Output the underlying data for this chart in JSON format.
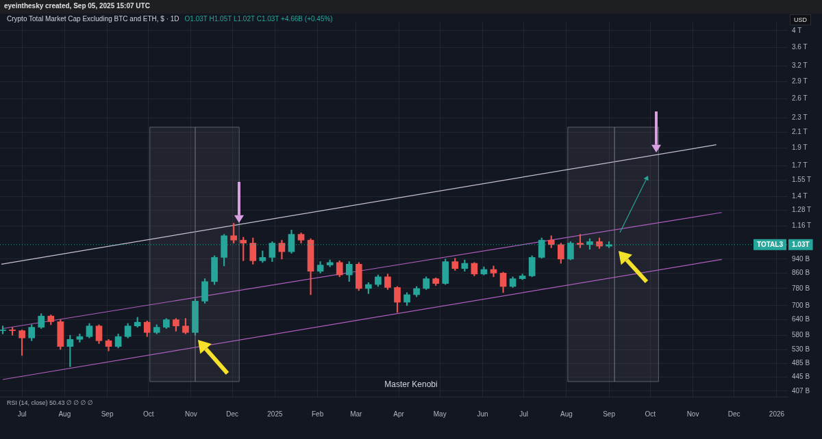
{
  "chart_data": {
    "type": "candlestick",
    "title": "Crypto Total Market Cap Excluding BTC and ETH, $ · 1D",
    "subtitle": "O1.03T H1.05T L1.02T C1.03T +4.66B (+0.45%)",
    "ylabel": "USD",
    "annotations": [
      "eyeinthesky created, Sep 05, 2025 15:07 UTC",
      "1.03T",
      "Master Kenobi",
      "RSI (14, close) 50.43 ∅ ∅ ∅ ∅"
    ],
    "x": [
      "2024-06-17",
      "2024-06-24",
      "2024-07-01",
      "2024-07-08",
      "2024-07-15",
      "2024-07-22",
      "2024-07-29",
      "2024-08-05",
      "2024-08-12",
      "2024-08-19",
      "2024-08-26",
      "2024-09-02",
      "2024-09-09",
      "2024-09-16",
      "2024-09-23",
      "2024-09-30",
      "2024-10-07",
      "2024-10-14",
      "2024-10-21",
      "2024-10-28",
      "2024-11-04",
      "2024-11-11",
      "2024-11-18",
      "2024-11-25",
      "2024-12-02",
      "2024-12-09",
      "2024-12-16",
      "2024-12-23",
      "2024-12-30",
      "2025-01-06",
      "2025-01-13",
      "2025-01-20",
      "2025-01-27",
      "2025-02-03",
      "2025-02-10",
      "2025-02-17",
      "2025-02-24",
      "2025-03-03",
      "2025-03-10",
      "2025-03-17",
      "2025-03-24",
      "2025-03-31",
      "2025-04-07",
      "2025-04-14",
      "2025-04-21",
      "2025-04-28",
      "2025-05-05",
      "2025-05-12",
      "2025-05-19",
      "2025-05-26",
      "2025-06-02",
      "2025-06-09",
      "2025-06-16",
      "2025-06-23",
      "2025-06-30",
      "2025-07-07",
      "2025-07-14",
      "2025-07-21",
      "2025-07-28",
      "2025-08-04",
      "2025-08-11",
      "2025-08-18",
      "2025-08-25",
      "2025-09-01"
    ],
    "ohlc": [
      [
        597000000000.0,
        615000000000.0,
        585000000000.0,
        600000000000.0
      ],
      [
        600000000000.0,
        610000000000.0,
        580000000000.0,
        597000000000.0
      ],
      [
        597000000000.0,
        600000000000.0,
        510000000000.0,
        570000000000.0
      ],
      [
        570000000000.0,
        620000000000.0,
        560000000000.0,
        610000000000.0
      ],
      [
        610000000000.0,
        665000000000.0,
        605000000000.0,
        655000000000.0
      ],
      [
        655000000000.0,
        660000000000.0,
        620000000000.0,
        632000000000.0
      ],
      [
        632000000000.0,
        640000000000.0,
        530000000000.0,
        540000000000.0
      ],
      [
        540000000000.0,
        580000000000.0,
        475000000000.0,
        565000000000.0
      ],
      [
        565000000000.0,
        585000000000.0,
        555000000000.0,
        575000000000.0
      ],
      [
        575000000000.0,
        625000000000.0,
        570000000000.0,
        615000000000.0
      ],
      [
        615000000000.0,
        620000000000.0,
        550000000000.0,
        560000000000.0
      ],
      [
        560000000000.0,
        565000000000.0,
        525000000000.0,
        540000000000.0
      ],
      [
        540000000000.0,
        585000000000.0,
        535000000000.0,
        575000000000.0
      ],
      [
        575000000000.0,
        625000000000.0,
        570000000000.0,
        615000000000.0
      ],
      [
        615000000000.0,
        650000000000.0,
        610000000000.0,
        630000000000.0
      ],
      [
        630000000000.0,
        635000000000.0,
        575000000000.0,
        590000000000.0
      ],
      [
        590000000000.0,
        620000000000.0,
        585000000000.0,
        610000000000.0
      ],
      [
        610000000000.0,
        645000000000.0,
        605000000000.0,
        640000000000.0
      ],
      [
        640000000000.0,
        645000000000.0,
        595000000000.0,
        615000000000.0
      ],
      [
        615000000000.0,
        645000000000.0,
        585000000000.0,
        590000000000.0
      ],
      [
        590000000000.0,
        730000000000.0,
        580000000000.0,
        720000000000.0
      ],
      [
        720000000000.0,
        830000000000.0,
        710000000000.0,
        815000000000.0
      ],
      [
        815000000000.0,
        960000000000.0,
        800000000000.0,
        950000000000.0
      ],
      [
        950000000000.0,
        1100000000000.0,
        900000000000.0,
        1090000000000.0
      ],
      [
        1090000000000.0,
        1180000000000.0,
        1040000000000.0,
        1060000000000.0
      ],
      [
        1060000000000.0,
        1080000000000.0,
        930000000000.0,
        1040000000000.0
      ],
      [
        1040000000000.0,
        1075000000000.0,
        910000000000.0,
        930000000000.0
      ],
      [
        930000000000.0,
        990000000000.0,
        920000000000.0,
        950000000000.0
      ],
      [
        950000000000.0,
        1050000000000.0,
        925000000000.0,
        1040000000000.0
      ],
      [
        1040000000000.0,
        1060000000000.0,
        940000000000.0,
        985000000000.0
      ],
      [
        985000000000.0,
        1130000000000.0,
        975000000000.0,
        1100000000000.0
      ],
      [
        1100000000000.0,
        1110000000000.0,
        1040000000000.0,
        1060000000000.0
      ],
      [
        1060000000000.0,
        1070000000000.0,
        750000000000.0,
        870000000000.0
      ],
      [
        870000000000.0,
        925000000000.0,
        860000000000.0,
        905000000000.0
      ],
      [
        905000000000.0,
        935000000000.0,
        895000000000.0,
        920000000000.0
      ],
      [
        920000000000.0,
        930000000000.0,
        840000000000.0,
        850000000000.0
      ],
      [
        850000000000.0,
        925000000000.0,
        815000000000.0,
        910000000000.0
      ],
      [
        910000000000.0,
        920000000000.0,
        770000000000.0,
        780000000000.0
      ],
      [
        780000000000.0,
        810000000000.0,
        755000000000.0,
        800000000000.0
      ],
      [
        800000000000.0,
        850000000000.0,
        790000000000.0,
        840000000000.0
      ],
      [
        840000000000.0,
        855000000000.0,
        775000000000.0,
        785000000000.0
      ],
      [
        785000000000.0,
        790000000000.0,
        670000000000.0,
        715000000000.0
      ],
      [
        715000000000.0,
        760000000000.0,
        700000000000.0,
        750000000000.0
      ],
      [
        750000000000.0,
        790000000000.0,
        740000000000.0,
        780000000000.0
      ],
      [
        780000000000.0,
        840000000000.0,
        775000000000.0,
        830000000000.0
      ],
      [
        830000000000.0,
        835000000000.0,
        795000000000.0,
        805000000000.0
      ],
      [
        805000000000.0,
        940000000000.0,
        800000000000.0,
        925000000000.0
      ],
      [
        925000000000.0,
        945000000000.0,
        875000000000.0,
        885000000000.0
      ],
      [
        885000000000.0,
        935000000000.0,
        870000000000.0,
        915000000000.0
      ],
      [
        915000000000.0,
        920000000000.0,
        845000000000.0,
        855000000000.0
      ],
      [
        855000000000.0,
        895000000000.0,
        850000000000.0,
        880000000000.0
      ],
      [
        880000000000.0,
        900000000000.0,
        840000000000.0,
        860000000000.0
      ],
      [
        860000000000.0,
        865000000000.0,
        760000000000.0,
        790000000000.0
      ],
      [
        790000000000.0,
        840000000000.0,
        785000000000.0,
        830000000000.0
      ],
      [
        830000000000.0,
        855000000000.0,
        825000000000.0,
        845000000000.0
      ],
      [
        845000000000.0,
        960000000000.0,
        840000000000.0,
        950000000000.0
      ],
      [
        950000000000.0,
        1075000000000.0,
        945000000000.0,
        1060000000000.0
      ],
      [
        1060000000000.0,
        1090000000000.0,
        1010000000000.0,
        1030000000000.0
      ],
      [
        1030000000000.0,
        1040000000000.0,
        915000000000.0,
        940000000000.0
      ],
      [
        940000000000.0,
        1050000000000.0,
        935000000000.0,
        1040000000000.0
      ],
      [
        1040000000000.0,
        1100000000000.0,
        1010000000000.0,
        1030000000000.0
      ],
      [
        1030000000000.0,
        1070000000000.0,
        1000000000000.0,
        1050000000000.0
      ],
      [
        1050000000000.0,
        1075000000000.0,
        1005000000000.0,
        1020000000000.0
      ],
      [
        1020000000000.0,
        1050000000000.0,
        1010000000000.0,
        1030000000000.0
      ]
    ],
    "colors": [
      "#26a69a",
      "#ef5350",
      "#ef5350",
      "#26a69a",
      "#26a69a",
      "#ef5350",
      "#ef5350",
      "#26a69a",
      "#26a69a",
      "#26a69a",
      "#ef5350",
      "#ef5350",
      "#26a69a",
      "#26a69a",
      "#26a69a",
      "#ef5350",
      "#26a69a",
      "#26a69a",
      "#ef5350",
      "#ef5350",
      "#26a69a",
      "#26a69a",
      "#26a69a",
      "#26a69a",
      "#ef5350",
      "#ef5350",
      "#ef5350",
      "#26a69a",
      "#26a69a",
      "#ef5350",
      "#26a69a",
      "#ef5350",
      "#ef5350",
      "#26a69a",
      "#26a69a",
      "#ef5350",
      "#26a69a",
      "#ef5350",
      "#26a69a",
      "#26a69a",
      "#ef5350",
      "#ef5350",
      "#26a69a",
      "#26a69a",
      "#26a69a",
      "#ef5350",
      "#26a69a",
      "#ef5350",
      "#26a69a",
      "#ef5350",
      "#26a69a",
      "#ef5350",
      "#ef5350",
      "#26a69a",
      "#26a69a",
      "#26a69a",
      "#26a69a",
      "#ef5350",
      "#ef5350",
      "#26a69a",
      "#ef5350",
      "#26a69a",
      "#ef5350",
      "#26a69a"
    ],
    "series": [
      {
        "type": "line",
        "color": "#c9c3d6",
        "x": [
          "2024-06-16",
          "2025-11-18"
        ],
        "values": [
          910000000000.0,
          1941000000000.0
        ]
      },
      {
        "type": "line",
        "color": "#b05fbf",
        "x": [
          "2024-06-17",
          "2025-11-22"
        ],
        "values": [
          605000000000.0,
          1263000000000.0
        ]
      },
      {
        "type": "line",
        "color": "#b05fbf",
        "x": [
          "2024-06-17",
          "2025-11-22"
        ],
        "values": [
          438000000000.0,
          938000000000.0
        ]
      }
    ],
    "bands": [
      {
        "axis": "x",
        "from": "2024-10-02",
        "to": "2024-12-06",
        "color": "#5d606b"
      },
      {
        "axis": "x",
        "from": "2025-08-02",
        "to": "2025-10-07",
        "color": "#5d606b"
      }
    ],
    "ref_lines": [
      {
        "axis": "x",
        "value": "2024-11-04",
        "color": "#787b86"
      },
      {
        "axis": "x",
        "value": "2025-09-05",
        "color": "#787b86"
      },
      {
        "axis": "y",
        "value": 1030000000000.0,
        "label": "TOTAL3",
        "color": "#26a69a",
        "line_style": "dotted"
      }
    ],
    "log": true,
    "ylim": [
      393000000000.0,
      4230000000000.0
    ],
    "yticks": [
      {
        "value": 407000000000.0,
        "label": "407 B"
      },
      {
        "value": 445000000000.0,
        "label": "445 B"
      },
      {
        "value": 485000000000.0,
        "label": "485 B"
      },
      {
        "value": 530000000000.0,
        "label": "530 B"
      },
      {
        "value": 580000000000.0,
        "label": "580 B"
      },
      {
        "value": 640000000000.0,
        "label": "640 B"
      },
      {
        "value": 700000000000.0,
        "label": "700 B"
      },
      {
        "value": 780000000000.0,
        "label": "780 B"
      },
      {
        "value": 860000000000.0,
        "label": "860 B"
      },
      {
        "value": 940000000000.0,
        "label": "940 B"
      },
      {
        "value": 1160000000000.0,
        "label": "1.16 T"
      },
      {
        "value": 1280000000000.0,
        "label": "1.28 T"
      },
      {
        "value": 1400000000000.0,
        "label": "1.4 T"
      },
      {
        "value": 1550000000000.0,
        "label": "1.55 T"
      },
      {
        "value": 1700000000000.0,
        "label": "1.7 T"
      },
      {
        "value": 1900000000000.0,
        "label": "1.9 T"
      },
      {
        "value": 2100000000000.0,
        "label": "2.1 T"
      },
      {
        "value": 2300000000000.0,
        "label": "2.3 T"
      },
      {
        "value": 2600000000000.0,
        "label": "2.6 T"
      },
      {
        "value": 2900000000000.0,
        "label": "2.9 T"
      },
      {
        "value": 3200000000000.0,
        "label": "3.2 T"
      },
      {
        "value": 3600000000000.0,
        "label": "3.6 T"
      },
      {
        "value": 4000000000000.0,
        "label": "4 T"
      }
    ],
    "xlim": [
      "2024-06-15",
      "2026-01-09"
    ],
    "xticks": [
      {
        "value": "2024-07-01",
        "label": "Jul"
      },
      {
        "value": "2024-08-01",
        "label": "Aug"
      },
      {
        "value": "2024-09-01",
        "label": "Sep"
      },
      {
        "value": "2024-10-01",
        "label": "Oct"
      },
      {
        "value": "2024-11-01",
        "label": "Nov"
      },
      {
        "value": "2024-12-01",
        "label": "Dec"
      },
      {
        "value": "2025-01-01",
        "label": "2025"
      },
      {
        "value": "2025-02-01",
        "label": "Feb"
      },
      {
        "value": "2025-03-01",
        "label": "Mar"
      },
      {
        "value": "2025-04-01",
        "label": "Apr"
      },
      {
        "value": "2025-05-01",
        "label": "May"
      },
      {
        "value": "2025-06-01",
        "label": "Jun"
      },
      {
        "value": "2025-07-01",
        "label": "Jul"
      },
      {
        "value": "2025-08-01",
        "label": "Aug"
      },
      {
        "value": "2025-09-01",
        "label": "Sep"
      },
      {
        "value": "2025-10-01",
        "label": "Oct"
      },
      {
        "value": "2025-11-01",
        "label": "Nov"
      },
      {
        "value": "2025-12-01",
        "label": "Dec"
      },
      {
        "value": "2026-01-01",
        "label": "2026"
      }
    ],
    "grid": true
  }
}
